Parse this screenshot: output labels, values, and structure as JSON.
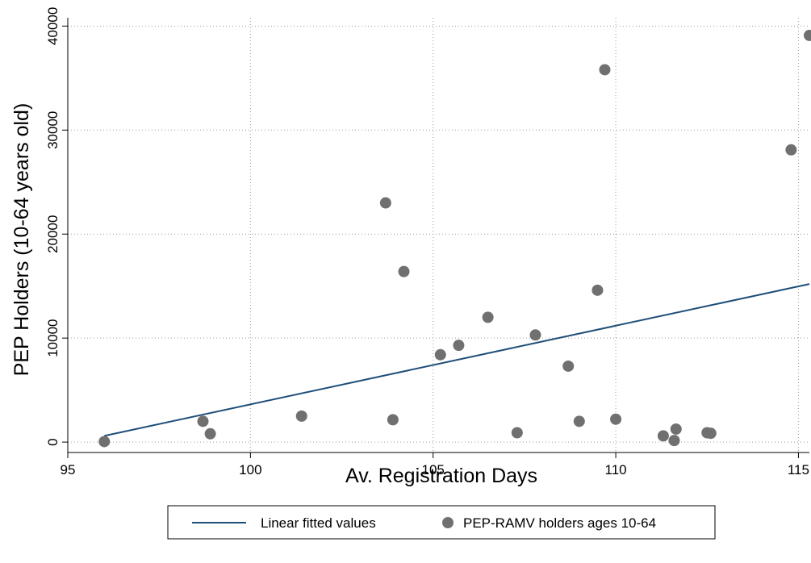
{
  "chart_data": {
    "type": "scatter",
    "title": "",
    "xlabel": "Av. Registration Days",
    "ylabel": "PEP Holders (10-64 years old)",
    "xlim": [
      95,
      115.3
    ],
    "ylim": [
      -1000,
      40800
    ],
    "xticks": [
      95,
      100,
      105,
      110,
      115
    ],
    "yticks": [
      0,
      10000,
      20000,
      30000,
      40000
    ],
    "xtick_labels": [
      "95",
      "100",
      "105",
      "110",
      "115"
    ],
    "ytick_labels": [
      "0",
      "10000",
      "20000",
      "30000",
      "40000"
    ],
    "grid": true,
    "legend_position": "bottom",
    "series": [
      {
        "name": "Linear fitted values",
        "kind": "line",
        "color": "#1f4e79",
        "x": [
          96.0,
          115.3
        ],
        "y": [
          600,
          15200
        ]
      },
      {
        "name": "PEP-RAMV holders ages 10-64",
        "kind": "scatter",
        "color": "#707070",
        "points": [
          [
            96.0,
            50
          ],
          [
            98.7,
            2000
          ],
          [
            98.9,
            800
          ],
          [
            101.4,
            2500
          ],
          [
            103.7,
            23000
          ],
          [
            103.9,
            2150
          ],
          [
            104.2,
            16400
          ],
          [
            105.2,
            8400
          ],
          [
            105.7,
            9300
          ],
          [
            106.5,
            12000
          ],
          [
            107.3,
            900
          ],
          [
            107.8,
            10300
          ],
          [
            108.7,
            7300
          ],
          [
            109.0,
            2000
          ],
          [
            109.5,
            14600
          ],
          [
            109.7,
            35800
          ],
          [
            110.0,
            2200
          ],
          [
            111.3,
            600
          ],
          [
            111.6,
            150
          ],
          [
            111.65,
            1250
          ],
          [
            112.5,
            900
          ],
          [
            112.6,
            850
          ],
          [
            114.8,
            28100
          ],
          [
            115.3,
            39100
          ]
        ]
      }
    ]
  }
}
